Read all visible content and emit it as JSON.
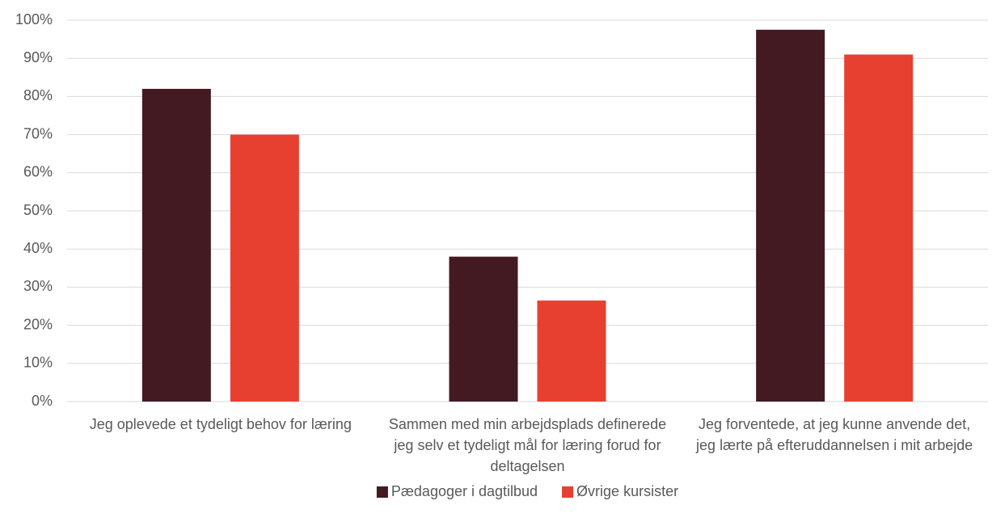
{
  "chart_data": {
    "type": "bar",
    "categories": [
      "Jeg oplevede et tydeligt behov for læring",
      "Sammen med min arbejdsplads definerede jeg selv et tydeligt mål for læring forud for deltagelsen",
      "Jeg forventede, at jeg kunne anvende det, jeg lærte på efteruddannelsen i mit arbejde"
    ],
    "series": [
      {
        "name": "Pædagoger i dagtilbud",
        "color": "#431a22",
        "values": [
          82,
          38,
          97.5
        ]
      },
      {
        "name": "Øvrige kursister",
        "color": "#e84030",
        "values": [
          70,
          26.5,
          91
        ]
      }
    ],
    "ylim": [
      0,
      100
    ],
    "yticks": [
      {
        "value": 0,
        "label": "0%"
      },
      {
        "value": 10,
        "label": "10%"
      },
      {
        "value": 20,
        "label": "20%"
      },
      {
        "value": 30,
        "label": "30%"
      },
      {
        "value": 40,
        "label": "40%"
      },
      {
        "value": 50,
        "label": "50%"
      },
      {
        "value": 60,
        "label": "60%"
      },
      {
        "value": 70,
        "label": "70%"
      },
      {
        "value": 80,
        "label": "80%"
      },
      {
        "value": 90,
        "label": "90%"
      },
      {
        "value": 100,
        "label": "100%"
      }
    ],
    "grid": true,
    "legend": "bottom"
  }
}
